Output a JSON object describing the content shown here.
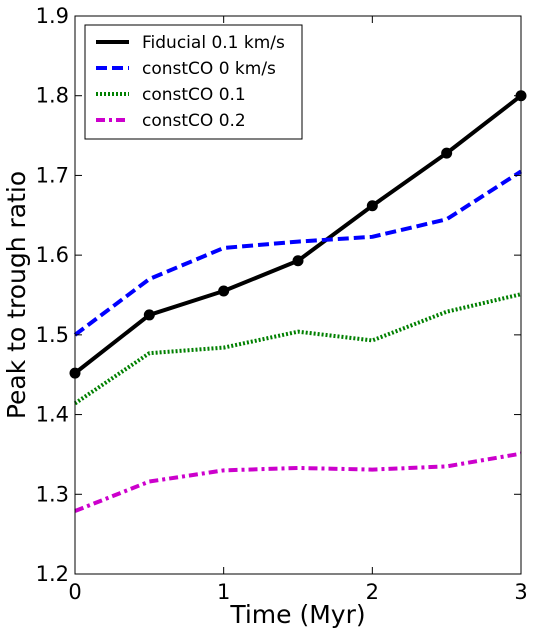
{
  "chart_data": {
    "type": "line",
    "title": "",
    "xlabel": "Time (Myr)",
    "ylabel": "Peak to trough ratio",
    "xlim": [
      0,
      3
    ],
    "ylim": [
      1.2,
      1.9
    ],
    "xticks": [
      0,
      1,
      2,
      3
    ],
    "xtick_labels": [
      "0",
      "1",
      "2",
      "3"
    ],
    "yticks": [
      1.2,
      1.3,
      1.4,
      1.5,
      1.6,
      1.7,
      1.8,
      1.9
    ],
    "ytick_labels": [
      "1.2",
      "1.3",
      "1.4",
      "1.5",
      "1.6",
      "1.7",
      "1.8",
      "1.9"
    ],
    "grid": false,
    "legend_position": "top-left",
    "series": [
      {
        "name": "Fiducial 0.1 km/s",
        "color": "#000000",
        "style": "solid",
        "markers": true,
        "x": [
          0,
          0.5,
          1,
          1.5,
          2,
          2.5,
          3
        ],
        "y": [
          1.452,
          1.525,
          1.555,
          1.593,
          1.662,
          1.728,
          1.8
        ]
      },
      {
        "name": "constCO 0 km/s",
        "color": "#0000ff",
        "style": "dashed",
        "markers": false,
        "x": [
          0,
          0.5,
          1,
          1.5,
          2,
          2.5,
          3
        ],
        "y": [
          1.5,
          1.57,
          1.609,
          1.617,
          1.623,
          1.645,
          1.705
        ]
      },
      {
        "name": "constCO 0.1",
        "color": "#008000",
        "style": "dotted",
        "markers": false,
        "x": [
          0,
          0.5,
          1,
          1.5,
          2,
          2.5,
          3
        ],
        "y": [
          1.414,
          1.477,
          1.484,
          1.504,
          1.493,
          1.529,
          1.551
        ]
      },
      {
        "name": "constCO 0.2",
        "color": "#cc00cc",
        "style": "dashdot",
        "markers": false,
        "x": [
          0,
          0.5,
          1,
          1.5,
          2,
          2.5,
          3
        ],
        "y": [
          1.279,
          1.316,
          1.33,
          1.333,
          1.331,
          1.335,
          1.351
        ]
      }
    ]
  }
}
